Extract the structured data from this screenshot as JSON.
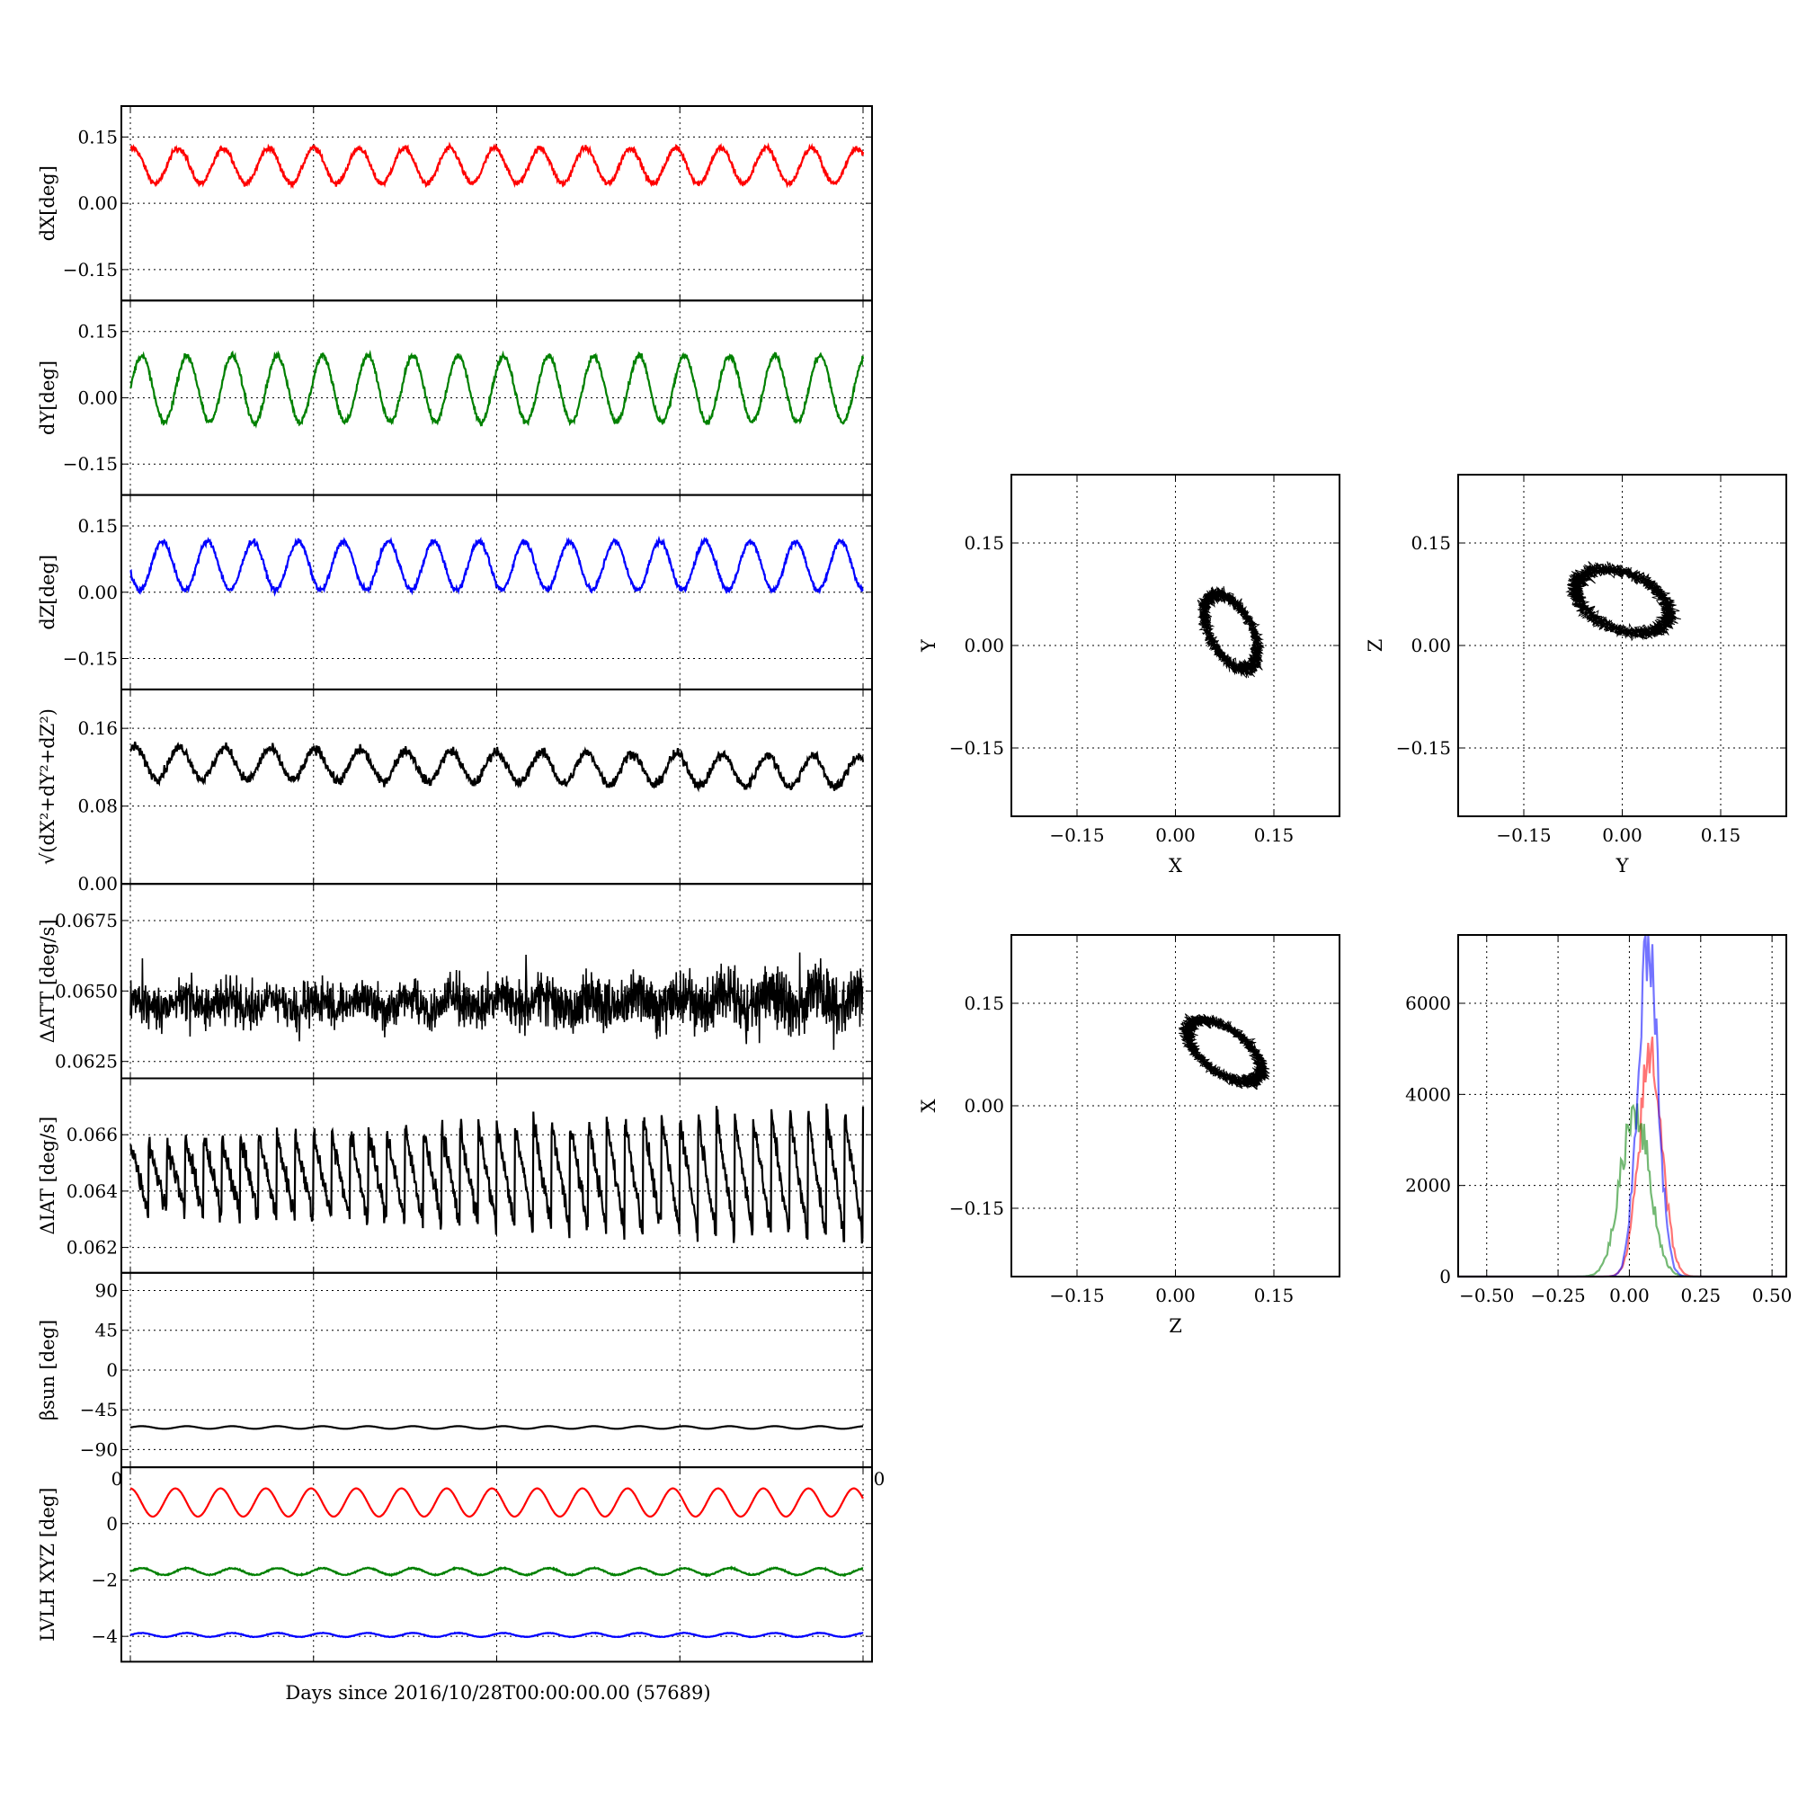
{
  "figure": {
    "xlabel": "Days since 2016/10/28T00:00:00.00 (57689)",
    "stray_ticks": {
      "left": "0",
      "right": "0"
    }
  },
  "left_panels": [
    {
      "name": "dx",
      "ylabel": "dX[deg]",
      "ylim": [
        -0.22,
        0.22
      ],
      "yticks": [
        -0.15,
        0.0,
        0.15
      ],
      "ytick_labels": [
        "−0.15",
        "0.00",
        "0.15"
      ],
      "series": [
        {
          "color": "#ff0000",
          "kind": "sine",
          "mean": 0.085,
          "amp": 0.04,
          "periods": 16.2,
          "phase": 1.2,
          "noise": 0.006,
          "drift": 0
        }
      ]
    },
    {
      "name": "dy",
      "ylabel": "dY[deg]",
      "ylim": [
        -0.22,
        0.22
      ],
      "yticks": [
        -0.15,
        0.0,
        0.15
      ],
      "ytick_labels": [
        "−0.15",
        "0.00",
        "0.15"
      ],
      "series": [
        {
          "color": "#008000",
          "kind": "sine",
          "mean": 0.02,
          "amp": 0.075,
          "periods": 16.2,
          "phase": 0.0,
          "noise": 0.007,
          "drift": 0
        }
      ]
    },
    {
      "name": "dz",
      "ylabel": "dZ[deg]",
      "ylim": [
        -0.22,
        0.22
      ],
      "yticks": [
        -0.15,
        0.0,
        0.15
      ],
      "ytick_labels": [
        "−0.15",
        "0.00",
        "0.15"
      ],
      "series": [
        {
          "color": "#0000ff",
          "kind": "sine",
          "mean": 0.06,
          "amp": 0.055,
          "periods": 16.2,
          "phase": 3.4,
          "noise": 0.006,
          "drift": 0
        }
      ]
    },
    {
      "name": "dr",
      "ylabel": "√(dX²+dY²+dZ²)",
      "ylim": [
        0.0,
        0.2
      ],
      "yticks": [
        0.0,
        0.08,
        0.16
      ],
      "ytick_labels": [
        "0.00",
        "0.08",
        "0.16"
      ],
      "series": [
        {
          "color": "#000000",
          "kind": "sine",
          "mean": 0.125,
          "amp": 0.016,
          "periods": 16.2,
          "phase": 1.0,
          "noise": 0.005,
          "drift": -0.01
        }
      ]
    },
    {
      "name": "datt",
      "ylabel": "ΔATT [deg/s]",
      "ylim": [
        0.0619,
        0.0688
      ],
      "yticks": [
        0.0625,
        0.065,
        0.0675
      ],
      "ytick_labels": [
        "0.0625",
        "0.0650",
        "0.0675"
      ],
      "series": [
        {
          "color": "#000000",
          "kind": "spiky",
          "mean": 0.0645,
          "amp": 0.0008,
          "periods": 16.2,
          "phase": 0.5,
          "noise": 0.0007,
          "drift": 0.0002
        }
      ]
    },
    {
      "name": "diat",
      "ylabel": "ΔIAT [deg/s]",
      "ylim": [
        0.0611,
        0.068
      ],
      "yticks": [
        0.062,
        0.064,
        0.066
      ],
      "ytick_labels": [
        "0.062",
        "0.064",
        "0.066"
      ],
      "series": [
        {
          "color": "#000000",
          "kind": "saw",
          "mean": 0.0645,
          "amp": 0.0018,
          "periods": 40,
          "phase": 0.0,
          "noise": 0.0004,
          "drift": 0
        }
      ]
    },
    {
      "name": "beta",
      "ylabel": "βsun [deg]",
      "ylim": [
        -110,
        110
      ],
      "yticks": [
        -90,
        -45,
        0,
        45,
        90
      ],
      "ytick_labels": [
        "−90",
        "−45",
        "0",
        "45",
        "90"
      ],
      "series": [
        {
          "color": "#000000",
          "kind": "sine",
          "mean": -65,
          "amp": 1.5,
          "periods": 16.2,
          "phase": 0.0,
          "noise": 0,
          "drift": 0
        }
      ]
    },
    {
      "name": "lvlh",
      "ylabel": "LVLH XYZ [deg]",
      "ylim": [
        -4.9,
        2.0
      ],
      "yticks": [
        -4,
        -2,
        0
      ],
      "ytick_labels": [
        "−4",
        "−2",
        "0"
      ],
      "series": [
        {
          "color": "#ff0000",
          "kind": "sine",
          "mean": 0.75,
          "amp": 0.5,
          "periods": 16.2,
          "phase": 1.6,
          "noise": 0,
          "drift": 0
        },
        {
          "color": "#008000",
          "kind": "sine",
          "mean": -1.7,
          "amp": 0.12,
          "periods": 16.2,
          "phase": 0.0,
          "noise": 0.02,
          "drift": 0
        },
        {
          "color": "#0000ff",
          "kind": "sine",
          "mean": -3.95,
          "amp": 0.07,
          "periods": 16.2,
          "phase": 0.0,
          "noise": 0.01,
          "drift": 0
        }
      ]
    }
  ],
  "scatter_panels": [
    {
      "name": "xy",
      "xlabel": "X",
      "ylabel": "Y",
      "xlim": [
        -0.25,
        0.25
      ],
      "ylim": [
        -0.25,
        0.25
      ],
      "ticks": [
        -0.15,
        0.0,
        0.15
      ],
      "tick_labels": [
        "−0.15",
        "0.00",
        "0.15"
      ],
      "ellipse": {
        "cx": 0.085,
        "cy": 0.02,
        "a": 0.06,
        "b": 0.032,
        "angle_deg": -60
      }
    },
    {
      "name": "yz",
      "xlabel": "Y",
      "ylabel": "Z",
      "xlim": [
        -0.25,
        0.25
      ],
      "ylim": [
        -0.25,
        0.25
      ],
      "ticks": [
        -0.15,
        0.0,
        0.15
      ],
      "tick_labels": [
        "−0.15",
        "0.00",
        "0.15"
      ],
      "ellipse": {
        "cx": 0.0,
        "cy": 0.065,
        "a": 0.075,
        "b": 0.042,
        "angle_deg": -20
      }
    },
    {
      "name": "zx",
      "xlabel": "Z",
      "ylabel": "X",
      "xlim": [
        -0.25,
        0.25
      ],
      "ylim": [
        -0.25,
        0.25
      ],
      "ticks": [
        -0.15,
        0.0,
        0.15
      ],
      "tick_labels": [
        "−0.15",
        "0.00",
        "0.15"
      ],
      "ellipse": {
        "cx": 0.075,
        "cy": 0.08,
        "a": 0.065,
        "b": 0.032,
        "angle_deg": -35
      }
    }
  ],
  "histogram": {
    "name": "hist",
    "xlim": [
      -0.6,
      0.55
    ],
    "ylim": [
      0,
      7500
    ],
    "xticks": [
      -0.5,
      -0.25,
      0.0,
      0.25,
      0.5
    ],
    "xtick_labels": [
      "−0.50",
      "−0.25",
      "0.00",
      "0.25",
      "0.50"
    ],
    "yticks": [
      0,
      2000,
      4000,
      6000
    ],
    "ytick_labels": [
      "0",
      "2000",
      "4000",
      "6000"
    ],
    "series": [
      {
        "color": "#ff0000",
        "mu": 0.075,
        "sigma": 0.04,
        "peak": 4900
      },
      {
        "color": "#008000",
        "mu": 0.02,
        "sigma": 0.05,
        "peak": 3700
      },
      {
        "color": "#0000ff",
        "mu": 0.065,
        "sigma": 0.035,
        "peak": 7200
      }
    ]
  }
}
